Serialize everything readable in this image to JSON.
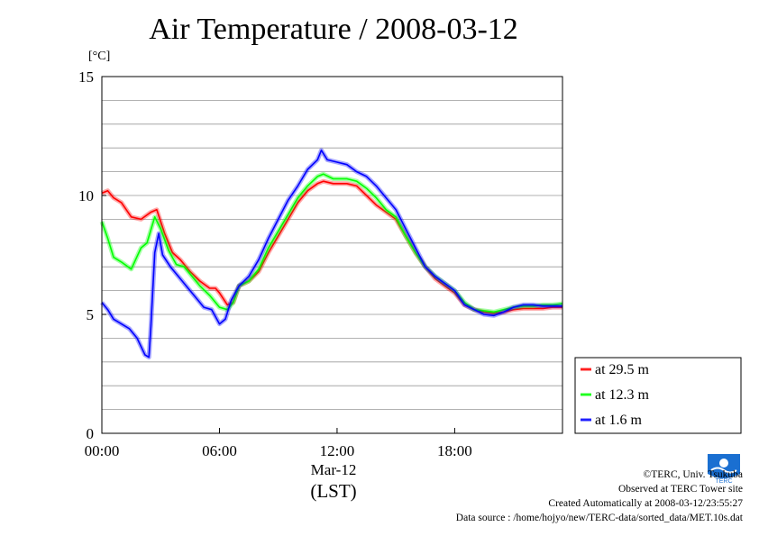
{
  "chart_data": {
    "type": "line",
    "title": "Air Temperature / 2008-03-12",
    "unit_label": "[°C]",
    "xlabel": "(LST)",
    "x_date_label": "Mar-12",
    "x_range_hours": [
      0,
      23.5
    ],
    "xticks": [
      {
        "value": 0,
        "label": "00:00"
      },
      {
        "value": 6,
        "label": "06:00"
      },
      {
        "value": 12,
        "label": "12:00"
      },
      {
        "value": 18,
        "label": "18:00"
      }
    ],
    "ylim": [
      0,
      15
    ],
    "yticks": [
      0,
      5,
      10,
      15
    ],
    "ygrid_step": 1,
    "legend_position": "right",
    "series": [
      {
        "name": "at 29.5 m",
        "color": "#ff0000",
        "x": [
          0,
          0.3,
          0.6,
          1.0,
          1.5,
          2.0,
          2.5,
          2.8,
          3.2,
          3.6,
          4.0,
          4.5,
          5.0,
          5.5,
          5.8,
          6.0,
          6.4,
          6.7,
          7.0,
          7.5,
          8.0,
          8.5,
          9.0,
          9.5,
          10.0,
          10.5,
          11.0,
          11.3,
          11.8,
          12.5,
          13.0,
          13.5,
          14.0,
          14.5,
          15.0,
          15.5,
          16.0,
          16.5,
          17.0,
          17.5,
          18.0,
          18.5,
          19.0,
          19.5,
          20.0,
          20.5,
          21.0,
          21.5,
          22.0,
          22.5,
          23.0,
          23.5
        ],
        "values": [
          10.1,
          10.2,
          9.9,
          9.7,
          9.1,
          9.0,
          9.3,
          9.4,
          8.4,
          7.6,
          7.3,
          6.8,
          6.4,
          6.1,
          6.1,
          5.9,
          5.4,
          5.5,
          6.2,
          6.4,
          6.8,
          7.6,
          8.3,
          9.0,
          9.7,
          10.2,
          10.5,
          10.6,
          10.5,
          10.5,
          10.4,
          10.0,
          9.6,
          9.3,
          9.0,
          8.3,
          7.6,
          7.0,
          6.5,
          6.2,
          5.9,
          5.4,
          5.2,
          5.1,
          5.05,
          5.1,
          5.2,
          5.25,
          5.25,
          5.25,
          5.3,
          5.3
        ]
      },
      {
        "name": "at 12.3 m",
        "color": "#00ff00",
        "x": [
          0,
          0.3,
          0.6,
          1.0,
          1.5,
          2.0,
          2.3,
          2.7,
          3.0,
          3.4,
          3.8,
          4.2,
          4.6,
          5.0,
          5.5,
          6.0,
          6.4,
          6.7,
          7.0,
          7.5,
          8.0,
          8.5,
          9.0,
          9.5,
          10.0,
          10.5,
          11.0,
          11.3,
          11.8,
          12.5,
          13.0,
          13.5,
          14.0,
          14.5,
          15.0,
          15.5,
          16.0,
          16.5,
          17.0,
          17.5,
          18.0,
          18.5,
          19.0,
          19.5,
          20.0,
          20.5,
          21.0,
          21.5,
          22.0,
          22.5,
          23.0,
          23.5
        ],
        "values": [
          8.9,
          8.2,
          7.4,
          7.2,
          6.9,
          7.8,
          8.0,
          9.1,
          8.6,
          7.7,
          7.1,
          7.0,
          6.6,
          6.2,
          5.8,
          5.3,
          5.2,
          5.5,
          6.2,
          6.4,
          6.9,
          7.8,
          8.5,
          9.2,
          9.9,
          10.4,
          10.8,
          10.9,
          10.7,
          10.7,
          10.6,
          10.3,
          9.9,
          9.4,
          9.1,
          8.3,
          7.6,
          7.0,
          6.6,
          6.3,
          6.0,
          5.5,
          5.2,
          5.15,
          5.1,
          5.2,
          5.3,
          5.35,
          5.35,
          5.4,
          5.4,
          5.45
        ]
      },
      {
        "name": "at 1.6 m",
        "color": "#0000ff",
        "x": [
          0,
          0.3,
          0.6,
          1.0,
          1.4,
          1.8,
          2.2,
          2.4,
          2.5,
          2.7,
          2.9,
          3.1,
          3.5,
          4.0,
          4.4,
          4.8,
          5.2,
          5.6,
          6.0,
          6.3,
          6.6,
          7.0,
          7.5,
          8.0,
          8.5,
          9.0,
          9.5,
          10.0,
          10.5,
          11.0,
          11.2,
          11.5,
          12.0,
          12.5,
          13.0,
          13.5,
          14.0,
          14.5,
          15.0,
          15.5,
          16.0,
          16.5,
          17.0,
          17.5,
          18.0,
          18.5,
          19.0,
          19.5,
          20.0,
          20.5,
          21.0,
          21.5,
          22.0,
          22.5,
          23.0,
          23.5
        ],
        "values": [
          5.5,
          5.2,
          4.8,
          4.6,
          4.4,
          4.0,
          3.3,
          3.2,
          4.5,
          7.6,
          8.4,
          7.5,
          7.0,
          6.5,
          6.1,
          5.7,
          5.3,
          5.2,
          4.6,
          4.8,
          5.6,
          6.2,
          6.6,
          7.3,
          8.2,
          9.0,
          9.8,
          10.4,
          11.1,
          11.5,
          11.9,
          11.5,
          11.4,
          11.3,
          11.0,
          10.8,
          10.4,
          9.9,
          9.4,
          8.6,
          7.8,
          7.0,
          6.6,
          6.3,
          6.0,
          5.4,
          5.2,
          5.0,
          4.95,
          5.1,
          5.3,
          5.4,
          5.4,
          5.35,
          5.35,
          5.35
        ]
      }
    ]
  },
  "credits": {
    "copyright": "©TERC, Univ. Tsukuba",
    "site": "Observed at TERC Tower site",
    "created": "Created Automatically at 2008-03-12/23:55:27",
    "source": "Data source : /home/hojyo/new/TERC-data/sorted_data/MET.10s.dat"
  },
  "logo": {
    "text": "TERC",
    "color": "#1a6fd1"
  }
}
